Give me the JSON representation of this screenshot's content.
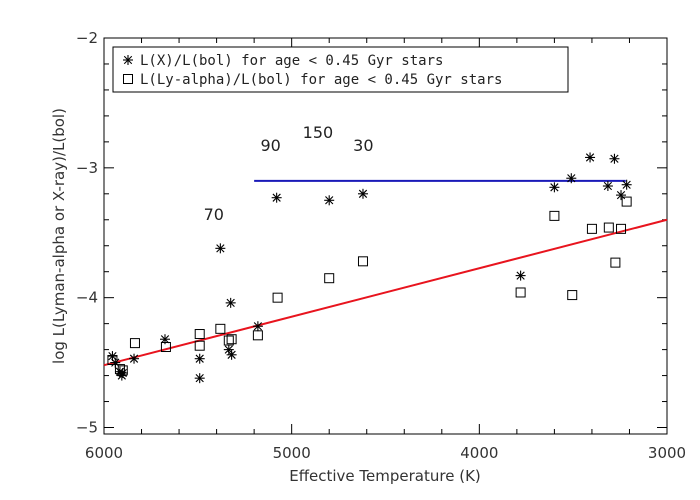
{
  "chart_data": {
    "type": "scatter",
    "xlabel": "Effective Temperature (K)",
    "ylabel": "log L(Lyman-alpha or X-ray)/L(bol)",
    "xlim": [
      6000,
      3000
    ],
    "ylim": [
      -5.05,
      -2.0
    ],
    "x_reversed": true,
    "x_ticks": [
      6000,
      5000,
      4000,
      3000
    ],
    "x_tick_labels": [
      "6000",
      "5000",
      "4000",
      "3000"
    ],
    "y_ticks": [
      -5,
      -4,
      -3,
      -2
    ],
    "y_tick_labels": [
      "−5",
      "−4",
      "−3",
      "−2"
    ],
    "legend_position": "top-left",
    "grid": false,
    "series": [
      {
        "name": "L(X)/L(bol) for age < 0.45 Gyr stars",
        "marker": "asterisk",
        "color": "#000000",
        "points": [
          [
            5955,
            -4.45
          ],
          [
            5940,
            -4.5
          ],
          [
            5915,
            -4.57
          ],
          [
            5905,
            -4.6
          ],
          [
            5900,
            -4.58
          ],
          [
            5840,
            -4.47
          ],
          [
            5675,
            -4.32
          ],
          [
            5490,
            -4.47
          ],
          [
            5490,
            -4.62
          ],
          [
            5380,
            -3.62
          ],
          [
            5335,
            -4.4
          ],
          [
            5325,
            -4.04
          ],
          [
            5320,
            -4.44
          ],
          [
            5180,
            -4.22
          ],
          [
            5080,
            -3.23
          ],
          [
            4800,
            -3.25
          ],
          [
            4620,
            -3.2
          ],
          [
            3780,
            -3.83
          ],
          [
            3600,
            -3.15
          ],
          [
            3510,
            -3.08
          ],
          [
            3410,
            -2.92
          ],
          [
            3315,
            -3.14
          ],
          [
            3280,
            -2.93
          ],
          [
            3245,
            -3.21
          ],
          [
            3215,
            -3.13
          ]
        ]
      },
      {
        "name": "L(Ly-alpha)/L(bol) for age < 0.45 Gyr stars",
        "marker": "square",
        "color": "#000000",
        "points": [
          [
            5955,
            -4.48
          ],
          [
            5915,
            -4.55
          ],
          [
            5900,
            -4.56
          ],
          [
            5835,
            -4.35
          ],
          [
            5670,
            -4.38
          ],
          [
            5490,
            -4.28
          ],
          [
            5490,
            -4.37
          ],
          [
            5380,
            -4.24
          ],
          [
            5335,
            -4.33
          ],
          [
            5320,
            -4.32
          ],
          [
            5180,
            -4.29
          ],
          [
            5075,
            -4.0
          ],
          [
            4800,
            -3.85
          ],
          [
            4620,
            -3.72
          ],
          [
            3780,
            -3.96
          ],
          [
            3600,
            -3.37
          ],
          [
            3505,
            -3.98
          ],
          [
            3400,
            -3.47
          ],
          [
            3310,
            -3.46
          ],
          [
            3275,
            -3.73
          ],
          [
            3245,
            -3.47
          ],
          [
            3215,
            -3.26
          ]
        ]
      }
    ],
    "lines": [
      {
        "color": "#1a1ab8",
        "x": [
          5200,
          3220
        ],
        "y": [
          -3.1,
          -3.1
        ]
      },
      {
        "color": "#e8141e",
        "x": [
          6000,
          3000
        ],
        "y": [
          -4.52,
          -3.4
        ]
      }
    ],
    "annotations": [
      {
        "text": "70",
        "x": 5415,
        "y": -2.85
      },
      {
        "text": "90",
        "x": 5112,
        "y": -2.85
      },
      {
        "text": "150",
        "x": 4860,
        "y": -2.85
      },
      {
        "text": "30",
        "x": 4618,
        "y": -2.85
      }
    ],
    "annotation_y": [
      -3.4,
      -2.87,
      -2.77,
      -2.87
    ]
  }
}
